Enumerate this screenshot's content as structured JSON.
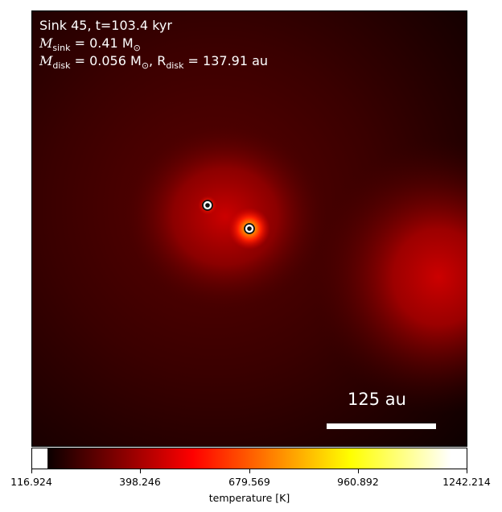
{
  "annotation": {
    "line1": "Sink 45, t=103.4 kyr",
    "msink_label": "M",
    "msink_sub": "sink",
    "msink_value": " = 0.41 M",
    "msink_sub2": "⊙",
    "mdisk_label": "M",
    "mdisk_sub": "disk",
    "mdisk_value": " = 0.056 M",
    "mdisk_sub2": "⊙",
    "rdisk_label": ", R",
    "rdisk_sub": "disk",
    "rdisk_value": " = 137.91 au"
  },
  "scale_bar": {
    "label": "125 au"
  },
  "colorbar": {
    "label": "temperature [K]",
    "colormap": "hot",
    "ticks": [
      "116.924",
      "398.246",
      "679.569",
      "960.892",
      "1242.214"
    ],
    "vmin": 116.924,
    "vmax": 1242.214
  },
  "colors": {
    "disk_hot": "#ffd000",
    "background": "#0a0000",
    "marker": "#ffffff"
  },
  "sinks": [
    {
      "name": "sink-a"
    },
    {
      "name": "sink-b"
    }
  ]
}
